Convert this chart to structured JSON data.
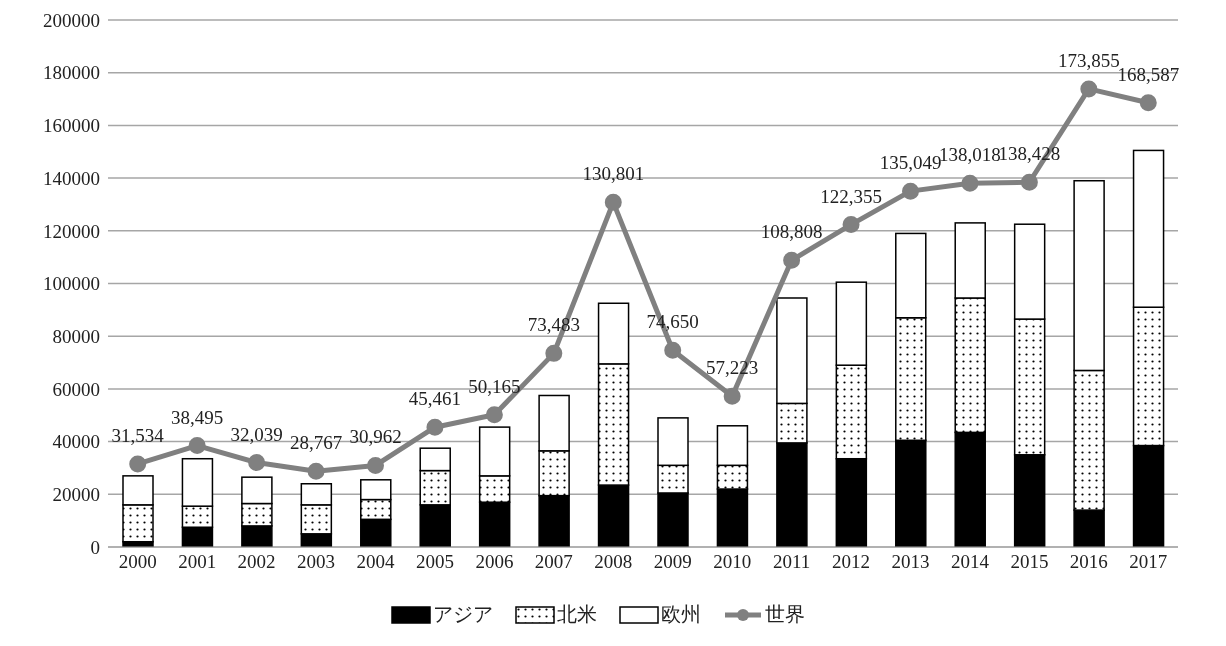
{
  "chart_data": {
    "type": "bar",
    "stacked": true,
    "categories": [
      "2000",
      "2001",
      "2002",
      "2003",
      "2004",
      "2005",
      "2006",
      "2007",
      "2008",
      "2009",
      "2010",
      "2011",
      "2012",
      "2013",
      "2014",
      "2015",
      "2016",
      "2017"
    ],
    "series": [
      {
        "name": "アジア",
        "color": "#000000",
        "values": [
          2000,
          7500,
          8000,
          5000,
          10500,
          16000,
          17000,
          19500,
          23500,
          20500,
          22000,
          39500,
          33500,
          40500,
          43500,
          35000,
          14000,
          38500
        ]
      },
      {
        "name": "北米",
        "color": "#ffffff",
        "values": [
          14000,
          8000,
          8500,
          11000,
          7500,
          13000,
          10000,
          17000,
          46000,
          10500,
          9000,
          15000,
          35500,
          46500,
          51000,
          51500,
          53000,
          52500
        ]
      },
      {
        "name": "欧州",
        "color": "#ffffff",
        "values": [
          11000,
          18000,
          10000,
          8000,
          7500,
          8500,
          18500,
          21000,
          23000,
          18000,
          15000,
          40000,
          31500,
          32000,
          28500,
          36000,
          72000,
          59500
        ]
      },
      {
        "name": "世界",
        "type": "line",
        "color": "#808080",
        "marker": "circle",
        "values": [
          31534,
          38495,
          32039,
          28767,
          30962,
          45461,
          50165,
          73483,
          130801,
          74650,
          57223,
          108808,
          122355,
          135049,
          138018,
          138428,
          173855,
          168587
        ],
        "value_labels": [
          "31,534",
          "38,495",
          "32,039",
          "28,767",
          "30,962",
          "45,461",
          "50,165",
          "73,483",
          "130,801",
          "74,650",
          "57,223",
          "108,808",
          "122,355",
          "135,049",
          "138,018",
          "138,428",
          "173,855",
          "168,587"
        ]
      }
    ],
    "ylim": [
      0,
      200000
    ],
    "yticks": [
      0,
      20000,
      40000,
      60000,
      80000,
      100000,
      120000,
      140000,
      160000,
      180000,
      200000
    ],
    "grid": "y",
    "legend": "bottom"
  }
}
